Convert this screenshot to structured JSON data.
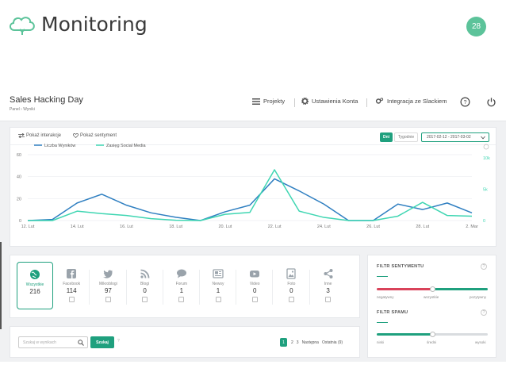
{
  "slide": {
    "title": "Monitoring",
    "page_number": "28",
    "accent": "#5cc39a"
  },
  "app": {
    "name": "Sales Hacking Day",
    "breadcrumb": "Panel › Wyniki",
    "nav": {
      "projects": "Projekty",
      "settings": "Ustawienia Konta",
      "slack": "Integracja ze Slackiem"
    }
  },
  "chart_toolbar": {
    "show_interactions": "Pokaż interakcje",
    "show_sentiment": "Pokaż sentyment",
    "btn_days": "Dni",
    "btn_weeks": "Tygodnie",
    "date_range": "2017-02-12 - 2017-03-02"
  },
  "chart_data": {
    "type": "line",
    "x": [
      "12. Lut",
      "",
      "14. Lut",
      "",
      "16. Lut",
      "",
      "18. Lut",
      "",
      "20. Lut",
      "",
      "22. Lut",
      "",
      "24. Lut",
      "",
      "26. Lut",
      "",
      "28. Lut",
      "",
      "2. Mar"
    ],
    "x_ticks": [
      "12. Lut",
      "14. Lut",
      "16. Lut",
      "18. Lut",
      "20. Lut",
      "22. Lut",
      "24. Lut",
      "26. Lut",
      "28. Lut",
      "2. Mar"
    ],
    "series": [
      {
        "name": "Liczba Wyników",
        "color": "#2f7fc1",
        "axis": "left",
        "values": [
          0,
          1,
          16,
          24,
          14,
          7,
          3,
          0,
          8,
          14,
          38,
          27,
          15,
          0,
          0,
          15,
          10,
          16,
          7
        ]
      },
      {
        "name": "Zasięg Social Media",
        "color": "#3fd6b2",
        "axis": "right",
        "values": [
          0,
          0,
          1500,
          1100,
          800,
          300,
          50,
          0,
          1000,
          1300,
          8100,
          1500,
          500,
          0,
          0,
          700,
          2900,
          800,
          700
        ]
      }
    ],
    "y_left": {
      "ticks": [
        "0",
        "20",
        "40",
        "60"
      ],
      "ylim": [
        0,
        60
      ]
    },
    "y_right": {
      "ticks": [
        "0",
        "5k",
        "10k"
      ],
      "ylim": [
        0,
        10500
      ]
    },
    "grid": true,
    "legend": "top-left"
  },
  "channels": [
    {
      "label": "Wszystkie",
      "count": "216",
      "icon": "globe-icon",
      "active": true
    },
    {
      "label": "Facebook",
      "count": "114",
      "icon": "facebook-icon",
      "active": false
    },
    {
      "label": "Mikroblogi",
      "count": "97",
      "icon": "twitter-icon",
      "active": false
    },
    {
      "label": "Blogi",
      "count": "0",
      "icon": "rss-icon",
      "active": false
    },
    {
      "label": "Forum",
      "count": "1",
      "icon": "chat-icon",
      "active": false
    },
    {
      "label": "Newsy",
      "count": "1",
      "icon": "news-icon",
      "active": false
    },
    {
      "label": "Video",
      "count": "0",
      "icon": "video-icon",
      "active": false
    },
    {
      "label": "Foto",
      "count": "0",
      "icon": "photo-icon",
      "active": false
    },
    {
      "label": "Inne",
      "count": "3",
      "icon": "share-icon",
      "active": false
    }
  ],
  "search": {
    "placeholder": "Szukaj w wynikach",
    "button": "Szukaj",
    "help": "?"
  },
  "pager": {
    "pages": [
      "1",
      "2",
      "3"
    ],
    "next": "Następna",
    "last": "Ostatnia (9)"
  },
  "sentiment_filter": {
    "title": "FILTR SENTYMENTU",
    "help": "?",
    "labels": [
      "negatywny",
      "wszystkie",
      "pozytywny"
    ],
    "value": 0.5,
    "colors": {
      "negative": "#d9435a",
      "positive": "#1fa07e"
    }
  },
  "spam_filter": {
    "title": "FILTR SPAMU",
    "help": "?",
    "labels": [
      "niski",
      "średni",
      "wysoki"
    ],
    "value": 0.5,
    "colors": {
      "active": "#1fa07e",
      "inactive": "#d9dcdf"
    }
  }
}
